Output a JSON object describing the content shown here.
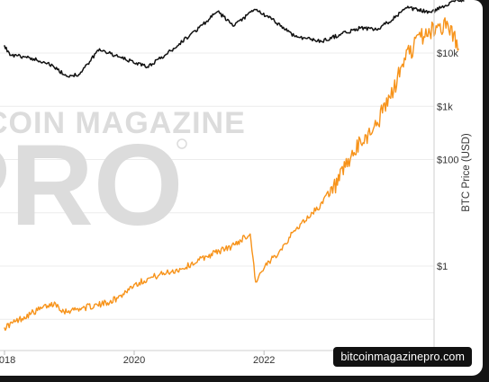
{
  "watermark": {
    "line1": "COIN MAGAZINE",
    "line2": "PRO",
    "color": "#dcdcdc"
  },
  "badge_text": "bitcoinmagazinepro.com",
  "chart_data": {
    "type": "line",
    "title": "",
    "xlabel": "",
    "x_ticks": [
      "2018",
      "2020",
      "2022"
    ],
    "y_axis_right": {
      "label": "BTC Price (USD)",
      "scale": "log",
      "ticks": [
        "$10k",
        "$1k",
        "$100",
        "$1"
      ]
    },
    "grid": "horizontal",
    "series": [
      {
        "color": "#f7931a",
        "values": [
          [
            "2017-12-31",
            0.07
          ],
          [
            "2018-03-01",
            0.09
          ],
          [
            "2018-06-01",
            0.13
          ],
          [
            "2018-09-01",
            0.18
          ],
          [
            "2018-10-15",
            0.2
          ],
          [
            "2018-12-01",
            0.14
          ],
          [
            "2019-03-01",
            0.16
          ],
          [
            "2019-07-01",
            0.19
          ],
          [
            "2019-10-01",
            0.25
          ],
          [
            "2020-01-01",
            0.45
          ],
          [
            "2020-04-01",
            0.6
          ],
          [
            "2020-07-01",
            0.75
          ],
          [
            "2020-10-01",
            0.9
          ],
          [
            "2021-01-01",
            1.3
          ],
          [
            "2021-04-01",
            1.8
          ],
          [
            "2021-07-01",
            2.3
          ],
          [
            "2021-09-15",
            3.5
          ],
          [
            "2021-10-15",
            4.0
          ],
          [
            "2021-11-15",
            0.5
          ],
          [
            "2022-01-01",
            0.9
          ],
          [
            "2022-04-01",
            2.0
          ],
          [
            "2022-07-01",
            5.0
          ],
          [
            "2022-10-01",
            10
          ],
          [
            "2023-01-01",
            20
          ],
          [
            "2023-03-01",
            40
          ],
          [
            "2023-05-01",
            100
          ],
          [
            "2023-07-01",
            200
          ],
          [
            "2023-10-01",
            500
          ],
          [
            "2024-01-01",
            2000
          ],
          [
            "2024-03-01",
            8000
          ],
          [
            "2024-06-01",
            20000
          ],
          [
            "2024-09-01",
            30000
          ],
          [
            "2024-11-01",
            35000
          ],
          [
            "2025-01-01",
            12000
          ]
        ]
      },
      {
        "color": "#111111",
        "values": [
          [
            "2017-12-31",
            14000
          ],
          [
            "2018-02-01",
            9000
          ],
          [
            "2018-05-01",
            8500
          ],
          [
            "2018-09-01",
            6500
          ],
          [
            "2018-12-15",
            3700
          ],
          [
            "2019-03-01",
            4000
          ],
          [
            "2019-06-20",
            12000
          ],
          [
            "2019-10-01",
            8500
          ],
          [
            "2020-03-15",
            5500
          ],
          [
            "2020-07-01",
            9500
          ],
          [
            "2021-01-01",
            30000
          ],
          [
            "2021-04-15",
            60000
          ],
          [
            "2021-07-15",
            32000
          ],
          [
            "2021-11-10",
            66000
          ],
          [
            "2022-03-01",
            40000
          ],
          [
            "2022-06-20",
            21000
          ],
          [
            "2022-11-20",
            16500
          ],
          [
            "2023-03-01",
            22000
          ],
          [
            "2023-07-01",
            30000
          ],
          [
            "2023-10-01",
            27000
          ],
          [
            "2024-03-15",
            70000
          ],
          [
            "2024-08-01",
            58000
          ],
          [
            "2024-12-15",
            100000
          ],
          [
            "2025-02-01",
            95000
          ]
        ]
      }
    ]
  }
}
